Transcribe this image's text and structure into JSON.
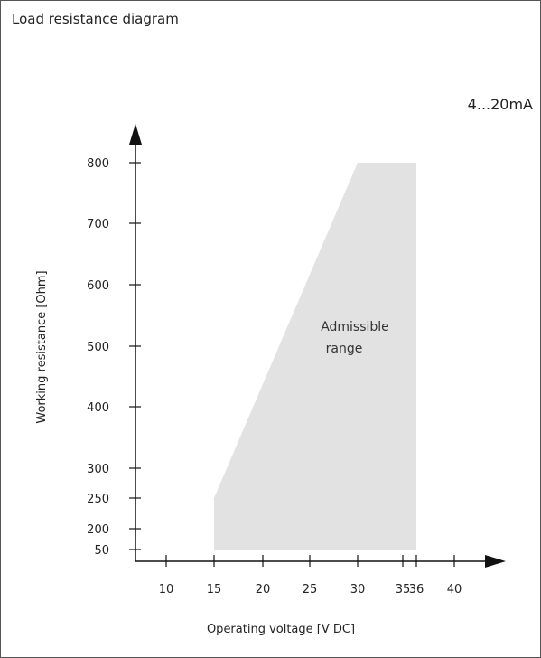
{
  "chart_data": {
    "type": "area",
    "title": "Load resistance diagram",
    "subtitle": "4...20mA",
    "xlabel": "Operating voltage  [V DC]",
    "ylabel": "Working resistance  [Ohm]",
    "x_ticks": [
      "10",
      "15",
      "20",
      "25",
      "30",
      "35",
      "36",
      "40"
    ],
    "y_ticks": [
      "50",
      "200",
      "250",
      "300",
      "400",
      "500",
      "600",
      "700",
      "800"
    ],
    "region": {
      "name": "Admissible range",
      "label_lines": [
        "Admissible",
        "range"
      ],
      "x": [
        15,
        15,
        30,
        36,
        36
      ],
      "y": [
        50,
        250,
        800,
        800,
        50
      ]
    },
    "colors": {
      "region": "#e2e2e2",
      "axis": "#111111"
    }
  }
}
